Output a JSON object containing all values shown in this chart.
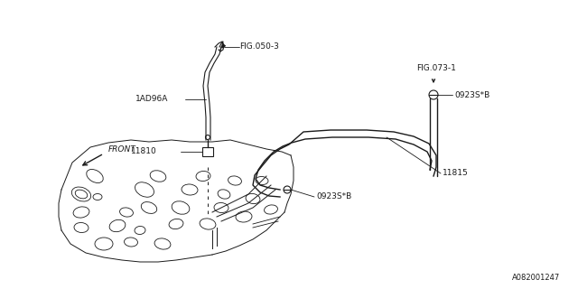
{
  "bg_color": "#ffffff",
  "line_color": "#1a1a1a",
  "fig_width": 6.4,
  "fig_height": 3.2,
  "dpi": 100,
  "part_number": "A082001247",
  "labels": {
    "fig050_3": "FIG.050-3",
    "fig073_1": "FIG.073-1",
    "part_1ad96a": "1AD96A",
    "part_11810": "11810",
    "part_11815": "11815",
    "clamp1": "0923S*B",
    "clamp2": "0923S*B",
    "front": "FRONT"
  }
}
